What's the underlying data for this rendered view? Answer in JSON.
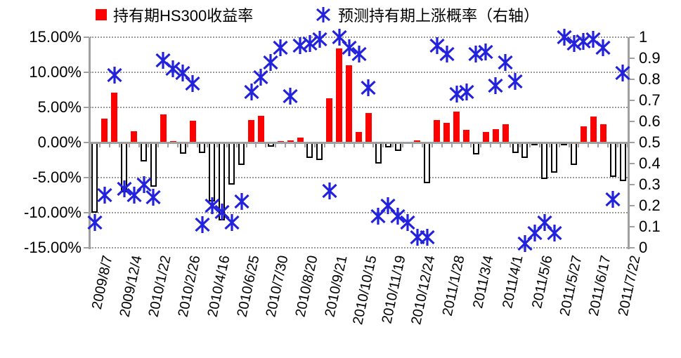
{
  "legend": {
    "bar_label": "持有期HS300收益率",
    "marker_label": "预测持有期上涨概率（右轴）"
  },
  "left_axis": {
    "tick_labels": [
      "15.00%",
      "10.00%",
      "5.00%",
      "0.00%",
      "-5.00%",
      "-10.00%",
      "-15.00%"
    ]
  },
  "right_axis": {
    "tick_labels": [
      "1",
      "0.9",
      "0.8",
      "0.7",
      "0.6",
      "0.5",
      "0.4",
      "0.3",
      "0.2",
      "0.1",
      "0"
    ]
  },
  "colors": {
    "bar_positive": "#fe0000",
    "bar_negative_fill": "#ffffff",
    "bar_negative_border": "#000000",
    "marker_blue": "#2222dd",
    "gridline": "#9a9a9a",
    "axis": "#a0a0a0",
    "text": "#000000"
  },
  "chart_data": {
    "type": "bar",
    "title": "",
    "x_tick_labels": [
      "2009/8/7",
      "2009/12/4",
      "2010/1/22",
      "2010/2/26",
      "2010/4/16",
      "2010/6/25",
      "2010/7/30",
      "2010/8/20",
      "2010/9/21",
      "2010/10/15",
      "2010/11/19",
      "2010/12/24",
      "2011/1/28",
      "2011/3/4",
      "2011/4/1",
      "2011/5/6",
      "2011/5/27",
      "2011/6/17",
      "2011/7/22"
    ],
    "x_label_every": 3,
    "n_points": 55,
    "left_ylim_pct": [
      -15,
      15
    ],
    "right_ylim": [
      0,
      1
    ],
    "grid": "horizontal-dotted",
    "legend_position": "top",
    "series": [
      {
        "name": "持有期HS300收益率",
        "type": "bar",
        "axis": "left",
        "unit": "%",
        "values": [
          -10.0,
          3.4,
          7.1,
          -7.1,
          1.6,
          -2.7,
          -6.3,
          4.0,
          0.2,
          -1.6,
          3.1,
          -1.5,
          -8.4,
          -11.1,
          -6.0,
          -3.2,
          3.2,
          3.8,
          -0.6,
          0.2,
          0.3,
          0.7,
          -2.2,
          -2.5,
          6.3,
          13.4,
          11.0,
          1.5,
          4.2,
          -3.0,
          -0.7,
          -1.2,
          0.1,
          0.3,
          -5.8,
          3.2,
          2.8,
          4.4,
          1.8,
          -1.7,
          1.5,
          1.9,
          2.6,
          -1.5,
          -2.2,
          -0.4,
          -5.2,
          -4.3,
          -0.2,
          -3.2,
          2.3,
          3.7,
          2.6,
          -4.9,
          -5.5
        ]
      },
      {
        "name": "预测持有期上涨概率（右轴）",
        "type": "scatter-asterisk",
        "axis": "right",
        "values": [
          0.12,
          0.25,
          0.82,
          0.28,
          0.25,
          0.3,
          0.24,
          0.89,
          0.85,
          0.83,
          0.78,
          0.11,
          0.2,
          0.17,
          0.12,
          0.22,
          0.74,
          0.81,
          0.88,
          0.95,
          0.72,
          0.96,
          0.97,
          0.99,
          0.27,
          1.0,
          0.95,
          0.92,
          0.76,
          0.15,
          0.2,
          0.15,
          0.12,
          0.05,
          0.05,
          0.96,
          0.92,
          0.73,
          0.74,
          0.92,
          0.93,
          0.77,
          0.88,
          0.79,
          0.02,
          0.07,
          0.12,
          0.07,
          1.0,
          0.97,
          0.98,
          0.99,
          0.95,
          0.23,
          0.83
        ]
      }
    ]
  }
}
